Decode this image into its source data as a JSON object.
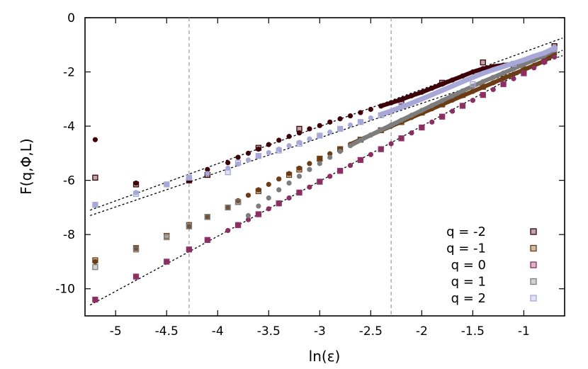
{
  "chart_data": {
    "type": "scatter",
    "title": "",
    "xlabel": "ln(ε)",
    "ylabel": "F(q,Φ,L)",
    "xlim": [
      -5.3,
      -0.6
    ],
    "ylim": [
      -11,
      0
    ],
    "xticks": [
      "-5",
      "-4.5",
      "-4",
      "-3.5",
      "-3",
      "-2.5",
      "-2",
      "-1.5",
      "-1"
    ],
    "yticks": [
      "0",
      "-2",
      "-4",
      "-6",
      "-8",
      "-10"
    ],
    "grid": false,
    "legend_position": "bottom-right",
    "vertical_reference_lines_x": [
      -4.28,
      -2.3
    ],
    "fit_lines": [
      {
        "x": [
          -5.25,
          -0.62
        ],
        "y": [
          -10.6,
          -1.2
        ]
      },
      {
        "x": [
          -5.25,
          -0.62
        ],
        "y": [
          -7.1,
          -0.75
        ]
      },
      {
        "x": [
          -5.25,
          -0.62
        ],
        "y": [
          -7.3,
          -1.4
        ]
      }
    ],
    "series": [
      {
        "name": "q = -2",
        "color": "#3d0008",
        "dots_x": [
          -5.2,
          -4.8,
          -4.28,
          -4.1,
          -3.9,
          -3.8,
          -3.7,
          -3.6,
          -3.5,
          -3.4,
          -3.3,
          -3.2,
          -3.1,
          -3.0,
          -2.9,
          -2.8,
          -2.7,
          -2.6,
          -2.5,
          -2.4,
          -2.3,
          -2.2,
          -2.1,
          -2.0,
          -1.9,
          -1.8,
          -1.7,
          -1.6,
          -1.5,
          -1.4,
          -1.3,
          -1.2,
          -1.1,
          -1.0,
          -0.9,
          -0.8,
          -0.7
        ],
        "dots_y": [
          -4.5,
          -6.1,
          -6.0,
          -5.6,
          -5.35,
          -5.15,
          -5.0,
          -4.85,
          -4.68,
          -4.52,
          -4.38,
          -4.25,
          -4.1,
          -3.98,
          -3.85,
          -3.73,
          -3.62,
          -3.5,
          -3.38,
          -3.26,
          -3.14,
          -3.02,
          -2.88,
          -2.75,
          -2.6,
          -2.45,
          -2.3,
          -2.15,
          -2.0,
          -1.88,
          -1.8,
          -1.75,
          -1.7,
          -1.62,
          -1.52,
          -1.42,
          -1.25
        ],
        "squares_x": [
          -5.2,
          -4.8,
          -4.28,
          -4.1,
          -3.6,
          -3.2,
          -2.2,
          -1.8,
          -1.4,
          -1.1,
          -0.7
        ],
        "squares_y": [
          -5.9,
          -6.15,
          -6.0,
          -5.8,
          -4.8,
          -4.1,
          -3.1,
          -2.4,
          -1.65,
          -1.75,
          -1.05
        ]
      },
      {
        "name": "q = -1",
        "color": "#6b3c15",
        "dots_x": [
          -5.2,
          -4.8,
          -4.28,
          -4.1,
          -3.9,
          -3.8,
          -3.7,
          -3.6,
          -3.5,
          -3.4,
          -3.3,
          -3.2,
          -3.1,
          -3.0,
          -2.9,
          -2.8,
          -2.7,
          -2.6,
          -2.5,
          -2.4,
          -2.3,
          -2.2,
          -2.1,
          -2.0,
          -1.9,
          -1.8,
          -1.7,
          -1.6,
          -1.5,
          -1.4,
          -1.3,
          -1.2,
          -1.1,
          -1.0,
          -0.9,
          -0.8,
          -0.7
        ],
        "dots_y": [
          -9.0,
          -8.5,
          -7.7,
          -7.35,
          -7.0,
          -6.75,
          -6.55,
          -6.35,
          -6.15,
          -5.95,
          -5.75,
          -5.55,
          -5.38,
          -5.2,
          -5.02,
          -4.85,
          -4.67,
          -4.5,
          -4.33,
          -4.16,
          -4.0,
          -3.84,
          -3.68,
          -3.52,
          -3.36,
          -3.2,
          -3.04,
          -2.88,
          -2.72,
          -2.56,
          -2.4,
          -2.24,
          -2.08,
          -1.92,
          -1.76,
          -1.6,
          -1.35
        ],
        "squares_x": [
          -5.2,
          -4.8,
          -4.5,
          -4.28,
          -4.1,
          -3.8,
          -3.6,
          -3.3,
          -3.2,
          -3.0,
          -2.8,
          -2.6,
          -2.4,
          -2.2,
          -2.0,
          -1.8,
          -1.6,
          -1.4,
          -1.2,
          -1.0,
          -0.8
        ],
        "squares_y": [
          -8.95,
          -8.5,
          -8.05,
          -7.65,
          -7.35,
          -6.8,
          -6.4,
          -5.8,
          -5.6,
          -5.2,
          -4.85,
          -4.5,
          -4.15,
          -3.85,
          -3.5,
          -3.2,
          -2.85,
          -2.55,
          -2.2,
          -1.9,
          -1.5
        ]
      },
      {
        "name": "q = 0",
        "color": "#8b2f62",
        "dots_x": [
          -5.2,
          -4.8,
          -4.5,
          -4.28,
          -4.1,
          -3.9,
          -3.8,
          -3.7,
          -3.6,
          -3.5,
          -3.4,
          -3.3,
          -3.2,
          -3.1,
          -3.0,
          -2.9,
          -2.8,
          -2.7,
          -2.6,
          -2.5,
          -2.4,
          -2.3,
          -2.2,
          -2.1,
          -2.0,
          -1.9,
          -1.8,
          -1.7,
          -1.6,
          -1.5,
          -1.4,
          -1.3,
          -1.2,
          -1.1,
          -1.0,
          -0.9,
          -0.8,
          -0.7
        ],
        "dots_y": [
          -10.4,
          -9.55,
          -9.0,
          -8.55,
          -8.2,
          -7.85,
          -7.65,
          -7.45,
          -7.25,
          -7.05,
          -6.85,
          -6.65,
          -6.45,
          -6.25,
          -6.05,
          -5.85,
          -5.65,
          -5.45,
          -5.25,
          -5.05,
          -4.85,
          -4.65,
          -4.45,
          -4.25,
          -4.05,
          -3.85,
          -3.65,
          -3.45,
          -3.25,
          -3.05,
          -2.85,
          -2.65,
          -2.45,
          -2.25,
          -2.05,
          -1.85,
          -1.65,
          -1.45
        ],
        "squares_x": [
          -5.2,
          -4.8,
          -4.5,
          -4.28,
          -4.1,
          -3.8,
          -3.6,
          -3.4,
          -3.2,
          -3.0,
          -2.8,
          -2.6,
          -2.4,
          -2.2,
          -2.0,
          -1.8,
          -1.6,
          -1.4,
          -1.2,
          -1.0,
          -0.8
        ],
        "squares_y": [
          -10.4,
          -9.55,
          -9.0,
          -8.55,
          -8.2,
          -7.65,
          -7.25,
          -6.85,
          -6.45,
          -6.05,
          -5.65,
          -5.25,
          -4.85,
          -4.45,
          -4.05,
          -3.65,
          -3.25,
          -2.85,
          -2.45,
          -2.05,
          -1.6
        ]
      },
      {
        "name": "q = 1",
        "color": "#7d7d7d",
        "dots_x": [
          -3.7,
          -3.6,
          -3.5,
          -3.4,
          -3.3,
          -3.2,
          -3.1,
          -3.0,
          -2.9,
          -2.8,
          -2.7,
          -2.6,
          -2.5,
          -2.4,
          -2.3,
          -2.2,
          -2.1,
          -2.0,
          -1.9,
          -1.8,
          -1.7,
          -1.6,
          -1.5,
          -1.4,
          -1.3,
          -1.2,
          -1.1,
          -1.0,
          -0.9,
          -0.8,
          -0.7
        ],
        "dots_y": [
          -7.3,
          -6.95,
          -6.65,
          -6.35,
          -6.1,
          -5.85,
          -5.6,
          -5.38,
          -5.15,
          -4.93,
          -4.72,
          -4.52,
          -4.33,
          -4.14,
          -3.96,
          -3.78,
          -3.6,
          -3.42,
          -3.24,
          -3.06,
          -2.88,
          -2.7,
          -2.53,
          -2.36,
          -2.2,
          -2.04,
          -1.88,
          -1.72,
          -1.56,
          -1.4,
          -1.2
        ],
        "squares_x": [
          -5.2,
          -4.8,
          -4.5,
          -4.28,
          -4.1,
          -3.9,
          -3.8
        ],
        "squares_y": [
          -9.2,
          -8.55,
          -8.1,
          -7.7,
          -7.35,
          -7.0,
          -6.8
        ]
      },
      {
        "name": "q = 2",
        "color": "#a8a8d8",
        "dots_x": [
          -5.2,
          -4.8,
          -4.5,
          -4.28,
          -4.1,
          -3.9,
          -3.8,
          -3.7,
          -3.6,
          -3.5,
          -3.4,
          -3.3,
          -3.2,
          -3.1,
          -3.0,
          -2.9,
          -2.8,
          -2.7,
          -2.6,
          -2.5,
          -2.4,
          -2.3,
          -2.2,
          -2.1,
          -2.0,
          -1.9,
          -1.8,
          -1.7,
          -1.6,
          -1.5,
          -1.4,
          -1.3,
          -1.2,
          -1.1,
          -1.0,
          -0.9,
          -0.8,
          -0.7
        ],
        "dots_y": [
          -6.9,
          -6.45,
          -6.15,
          -5.9,
          -5.75,
          -5.55,
          -5.4,
          -5.25,
          -5.1,
          -4.98,
          -4.85,
          -4.72,
          -4.6,
          -4.47,
          -4.35,
          -4.22,
          -4.09,
          -3.96,
          -3.83,
          -3.7,
          -3.57,
          -3.44,
          -3.3,
          -3.15,
          -3.0,
          -2.84,
          -2.68,
          -2.52,
          -2.36,
          -2.2,
          -2.05,
          -1.92,
          -1.8,
          -1.68,
          -1.56,
          -1.42,
          -1.3,
          -1.12
        ],
        "squares_x": [
          -5.2,
          -4.8,
          -4.5,
          -4.28,
          -3.9,
          -3.8,
          -3.6,
          -3.4,
          -3.2,
          -3.0,
          -2.8,
          -2.6,
          -2.4,
          -2.2,
          -1.5,
          -1.1,
          -0.7
        ],
        "squares_y": [
          -6.9,
          -6.5,
          -6.15,
          -5.9,
          -5.7,
          -5.35,
          -5.1,
          -4.9,
          -4.65,
          -4.35,
          -4.1,
          -3.85,
          -3.6,
          -3.25,
          -2.45,
          -1.7,
          -1.15
        ]
      }
    ]
  }
}
